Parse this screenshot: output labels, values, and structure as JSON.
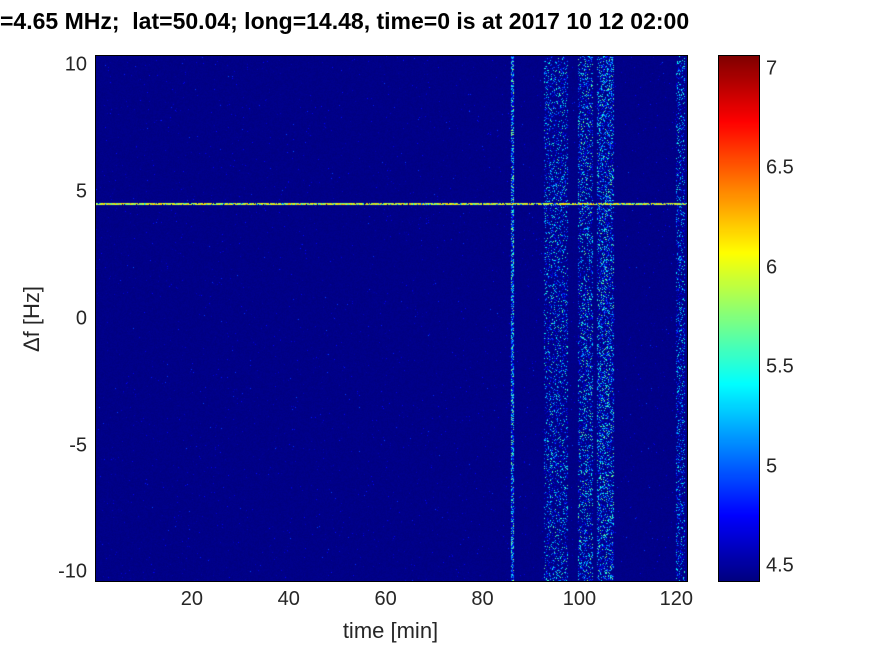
{
  "figure": {
    "background": "#ffffff",
    "tick_color": "#262626",
    "title_color": "#000000"
  },
  "chart_data": {
    "type": "heatmap",
    "title": "=4.65 MHz;  lat=50.04; long=14.48, time=0 is at 2017 10 12 02:00",
    "xlabel": "time [min]",
    "ylabel": "Δf [Hz]",
    "x_ticks": [
      20,
      40,
      60,
      80,
      100,
      120
    ],
    "y_ticks": [
      -10,
      -5,
      0,
      5,
      10
    ],
    "x_range": [
      0,
      122
    ],
    "y_range": [
      -10.3,
      10.4
    ],
    "colormap": "jet",
    "color_range": [
      4.43,
      7.07
    ],
    "colorbar_ticks": [
      4.5,
      5,
      5.5,
      6,
      6.5,
      7
    ],
    "background_value": 4.45,
    "features": {
      "carrier_line": {
        "y_hz": 4.55,
        "value_min": 5.7,
        "value_max": 6.3,
        "description": "bright yellow-green horizontal carrier line spanning all times"
      },
      "vertical_noise_bands": [
        {
          "x_start": 85.7,
          "x_end": 86.2,
          "density": 0.8,
          "value_max": 5.9
        },
        {
          "x_start": 92.5,
          "x_end": 97.5,
          "density": 0.25,
          "value_max": 5.7
        },
        {
          "x_start": 99.5,
          "x_end": 102.5,
          "density": 0.3,
          "value_max": 5.8
        },
        {
          "x_start": 103.5,
          "x_end": 107.0,
          "density": 0.38,
          "value_max": 5.8
        },
        {
          "x_start": 119.8,
          "x_end": 121.5,
          "density": 0.3,
          "value_max": 5.6
        }
      ],
      "background_speckle": {
        "density": 0.012,
        "value_max": 5.0
      }
    }
  }
}
